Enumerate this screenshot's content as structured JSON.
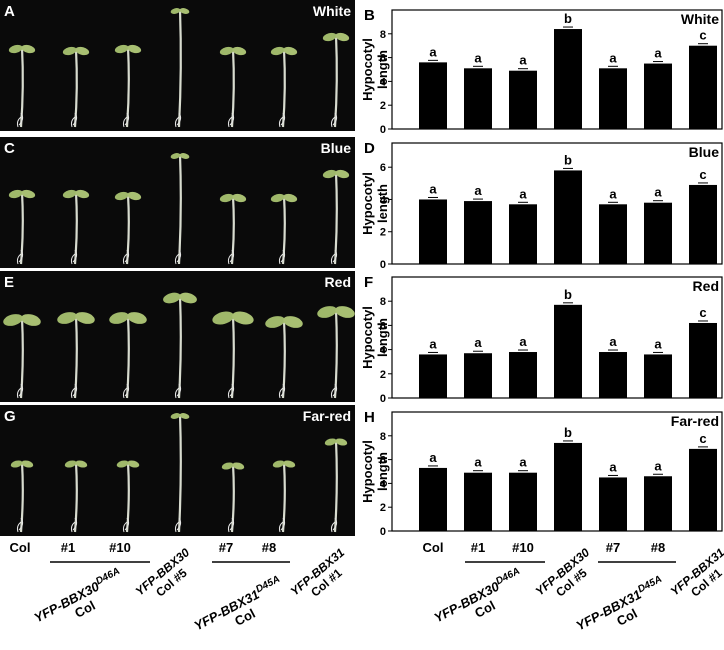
{
  "photos": [
    {
      "letter": "A",
      "label": "White"
    },
    {
      "letter": "C",
      "label": "Blue"
    },
    {
      "letter": "E",
      "label": "Red"
    },
    {
      "letter": "G",
      "label": "Far-red"
    }
  ],
  "photo_axis": {
    "categories": [
      "Col",
      "#1",
      "#10",
      null,
      "#7",
      "#8",
      null
    ],
    "groups": [
      {
        "gene": "YFP-BBX30",
        "sup": "D46A",
        "bg": "Col"
      },
      {
        "gene": "YFP-BBX31",
        "sup": "D45A",
        "bg": "Col"
      }
    ],
    "lines": [
      {
        "gene": "YFP-BBX30",
        "bg": "Col #5"
      },
      {
        "gene": "YFP-BBX31",
        "bg": "Col #1"
      }
    ]
  },
  "chart_data": [
    {
      "type": "bar",
      "letter": "B",
      "title": "White",
      "ylabel": [
        "Hypocotyl",
        "length"
      ],
      "ylim": [
        0,
        10
      ],
      "yticks": [
        0,
        2,
        4,
        6,
        8
      ],
      "color": "#000000",
      "values": [
        5.6,
        5.1,
        4.9,
        8.4,
        5.1,
        5.5,
        7.0
      ],
      "annotations": [
        "a",
        "a",
        "a",
        "b",
        "a",
        "a",
        "c"
      ]
    },
    {
      "type": "bar",
      "letter": "D",
      "title": "Blue",
      "ylabel": [
        "Hypocotyl",
        "length"
      ],
      "ylim": [
        0,
        7.5
      ],
      "yticks": [
        0,
        2,
        4,
        6
      ],
      "color": "#000000",
      "values": [
        4.0,
        3.9,
        3.7,
        5.8,
        3.7,
        3.8,
        4.9
      ],
      "annotations": [
        "a",
        "a",
        "a",
        "b",
        "a",
        "a",
        "c"
      ]
    },
    {
      "type": "bar",
      "letter": "F",
      "title": "Red",
      "ylabel": [
        "Hypocotyl",
        "length"
      ],
      "ylim": [
        0,
        10
      ],
      "yticks": [
        0,
        2,
        4,
        6,
        8
      ],
      "color": "#000000",
      "values": [
        3.6,
        3.7,
        3.8,
        7.7,
        3.8,
        3.6,
        6.2
      ],
      "annotations": [
        "a",
        "a",
        "a",
        "b",
        "a",
        "a",
        "c"
      ]
    },
    {
      "type": "bar",
      "letter": "H",
      "title": "Far-red",
      "ylabel": [
        "Hypocotyl",
        "length"
      ],
      "ylim": [
        0,
        10
      ],
      "yticks": [
        0,
        2,
        4,
        6,
        8
      ],
      "color": "#000000",
      "values": [
        5.3,
        4.9,
        4.9,
        7.4,
        4.5,
        4.6,
        6.9
      ],
      "annotations": [
        "a",
        "a",
        "a",
        "b",
        "a",
        "a",
        "c"
      ],
      "categories": [
        "Col",
        "#1",
        "#10",
        null,
        "#7",
        "#8",
        null
      ],
      "groups": [
        {
          "gene": "YFP-BBX30",
          "sup": "D46A",
          "bg": "Col"
        },
        {
          "gene": "YFP-BBX31",
          "sup": "D45A",
          "bg": "Col"
        }
      ],
      "lines": [
        {
          "gene": "YFP-BBX30",
          "bg": "Col #5"
        },
        {
          "gene": "YFP-BBX31",
          "bg": "Col #1"
        }
      ]
    }
  ]
}
